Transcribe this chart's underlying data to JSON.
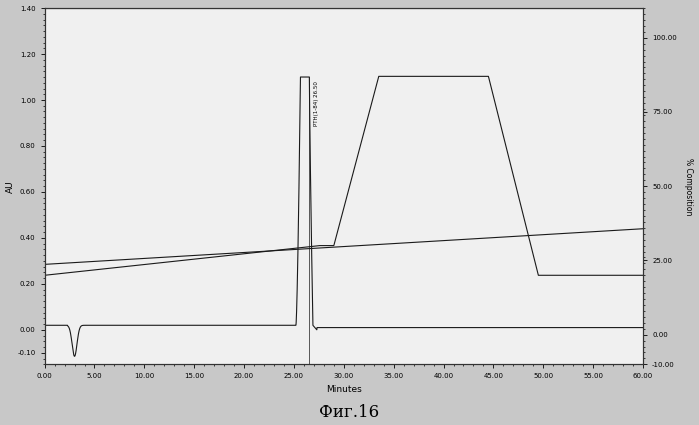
{
  "xlabel": "Minutes",
  "ylabel_left": "AU",
  "ylabel_right": "% Composition",
  "xlim": [
    0.0,
    60.0
  ],
  "ylim_left": [
    -0.15,
    1.4
  ],
  "ylim_right": [
    -10.0,
    110.0
  ],
  "left_yticks": [
    -0.1,
    0.0,
    0.2,
    0.4,
    0.6,
    0.8,
    1.0,
    1.2,
    1.4
  ],
  "right_yticks": [
    -10.0,
    0.0,
    25.0,
    50.0,
    75.0,
    100.0
  ],
  "xtick_vals": [
    0.0,
    5.0,
    10.0,
    15.0,
    20.0,
    25.0,
    30.0,
    35.0,
    40.0,
    45.0,
    50.0,
    55.0,
    60.0
  ],
  "peak_label": "PTH(1-84) 26.50",
  "peak_x": 26.5,
  "peak_top": 1.1,
  "caption": "Фиг.16",
  "line_color": "#1a1a1a",
  "bg_color": "#f0f0f0",
  "fig_bg": "#c8c8c8",
  "spine_color": "#333333",
  "uv_baseline_start": 0.285,
  "uv_baseline_end": 0.44,
  "uv_flat_start": 0.02,
  "artifact_x": 3.0,
  "artifact_depth": -0.135,
  "comp_start": 20.0,
  "comp_plateau1": 30.0,
  "comp_plateau2": 87.0,
  "comp_end": 20.0,
  "ramp_start_x": 27.5,
  "ramp_mid_x": 29.0,
  "ramp_top_x": 33.5,
  "plateau_end_x": 44.5,
  "drop_end_x": 49.5
}
